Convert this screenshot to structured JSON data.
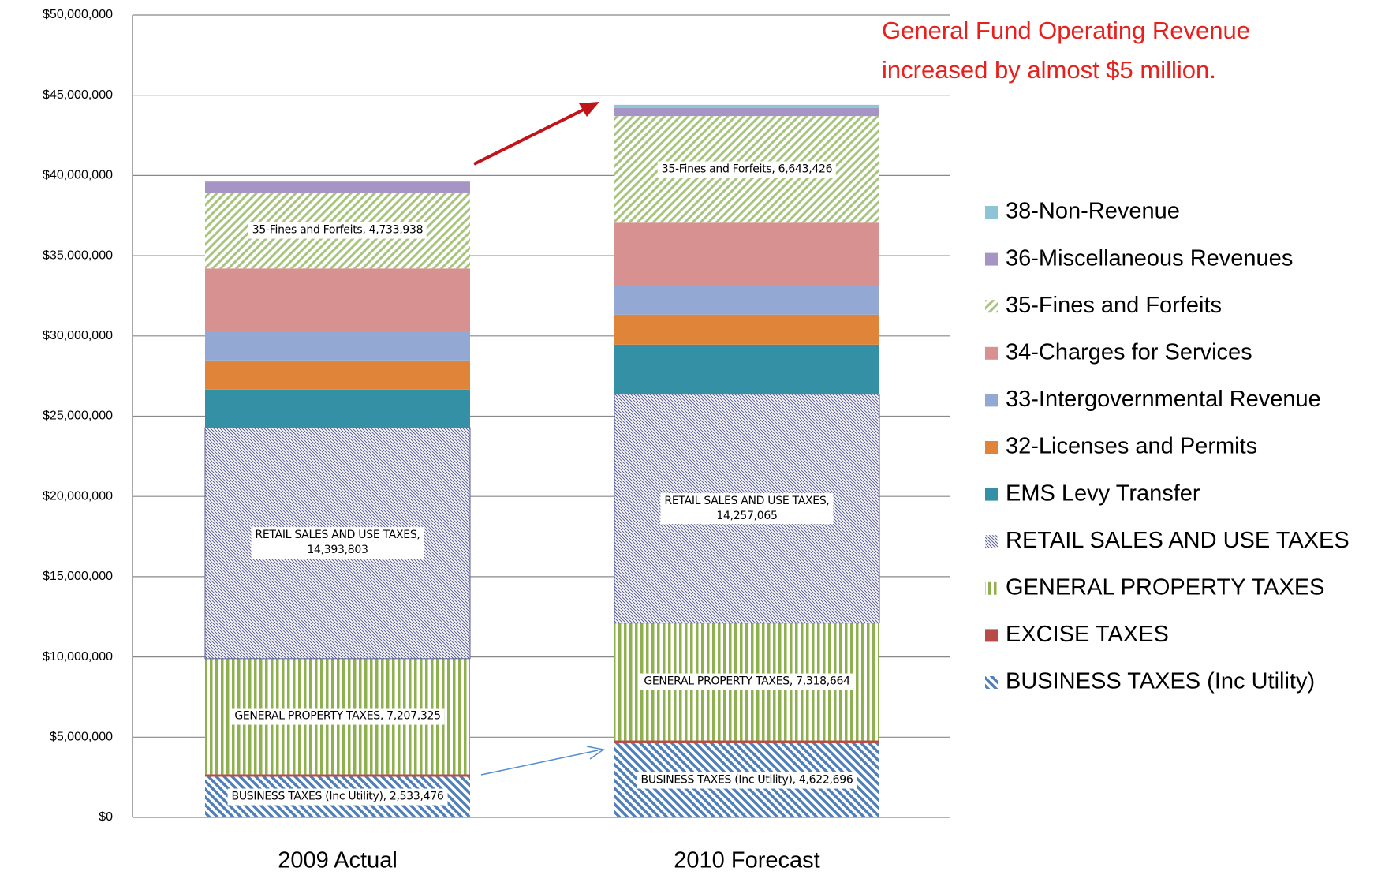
{
  "chart_data": {
    "type": "stacked_bar",
    "annotation": "General Fund Operating Revenue\nincreased by almost $5 million.",
    "categories": [
      "2009 Actual",
      "2010 Forecast"
    ],
    "ylim": [
      0,
      50000000
    ],
    "yticks": [
      {
        "value": 0,
        "label": "$0"
      },
      {
        "value": 5000000,
        "label": "$5,000,000"
      },
      {
        "value": 10000000,
        "label": "$10,000,000"
      },
      {
        "value": 15000000,
        "label": "$15,000,000"
      },
      {
        "value": 20000000,
        "label": "$20,000,000"
      },
      {
        "value": 25000000,
        "label": "$25,000,000"
      },
      {
        "value": 30000000,
        "label": "$30,000,000"
      },
      {
        "value": 35000000,
        "label": "$35,000,000"
      },
      {
        "value": 40000000,
        "label": "$40,000,000"
      },
      {
        "value": 45000000,
        "label": "$45,000,000"
      },
      {
        "value": 50000000,
        "label": "$50,000,000"
      }
    ],
    "grid": true,
    "legend": "right",
    "series": [
      {
        "name": "BUSINESS TAXES (Inc Utility)",
        "color": "#4f7fb8",
        "pattern": "diagonal-back",
        "values": [
          2533476,
          4622696
        ],
        "value_labels": [
          "BUSINESS TAXES (Inc Utility),  2,533,476",
          "BUSINESS TAXES (Inc Utility),  4,622,696"
        ]
      },
      {
        "name": "EXCISE TAXES",
        "color": "#b84b48",
        "values": [
          150000,
          170000
        ]
      },
      {
        "name": "GENERAL PROPERTY TAXES",
        "color": "#8fb04e",
        "pattern": "vertical",
        "values": [
          7207325,
          7318664
        ],
        "value_labels": [
          "GENERAL PROPERTY TAXES,  7,207,325",
          "GENERAL PROPERTY TAXES,  7,318,664"
        ]
      },
      {
        "name": "RETAIL SALES AND USE TAXES",
        "color": "#5a5e96",
        "pattern": "fine-back",
        "values": [
          14393803,
          14257065
        ],
        "value_labels": [
          "RETAIL SALES AND USE TAXES,\n14,393,803",
          "RETAIL SALES AND USE TAXES,\n14,257,065"
        ]
      },
      {
        "name": "EMS Levy Transfer",
        "color": "#3490a4",
        "values": [
          2370000,
          3090000
        ]
      },
      {
        "name": "32-Licenses and Permits",
        "color": "#e0843a",
        "values": [
          1820000,
          1870000
        ]
      },
      {
        "name": "33-Intergovernmental Revenue",
        "color": "#93a9d4",
        "values": [
          1820000,
          1760000
        ]
      },
      {
        "name": "34-Charges for Services",
        "color": "#d69190",
        "values": [
          3910000,
          3970000
        ]
      },
      {
        "name": "35-Fines and Forfeits",
        "color": "#a7c47c",
        "pattern": "diagonal-fwd",
        "values": [
          4733938,
          6643426
        ],
        "value_labels": [
          "35-Fines and Forfeits,  4,733,938",
          "35-Fines and Forfeits,  6,643,426"
        ]
      },
      {
        "name": "36-Miscellaneous Revenues",
        "color": "#a695c4",
        "values": [
          660000,
          500000
        ]
      },
      {
        "name": "38-Non-Revenue",
        "color": "#8ec4d6",
        "values": [
          50000,
          200000
        ]
      }
    ]
  }
}
